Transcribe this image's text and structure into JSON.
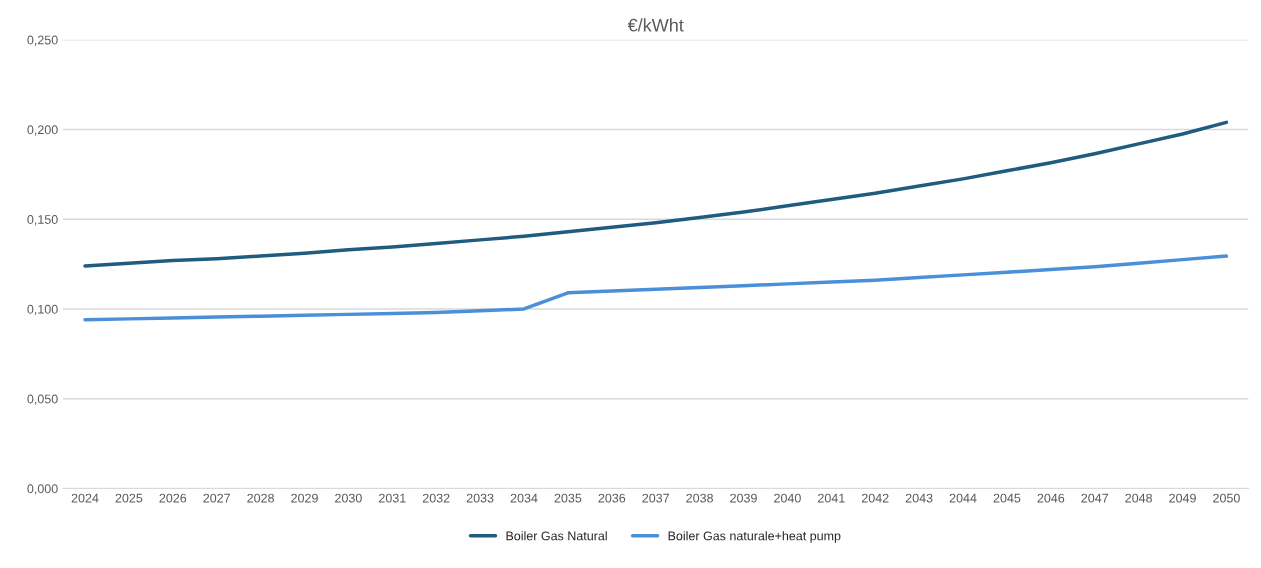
{
  "chart_data": {
    "type": "line",
    "title": "€/kWht",
    "categories": [
      "2024",
      "2025",
      "2026",
      "2027",
      "2028",
      "2029",
      "2030",
      "2031",
      "2032",
      "2033",
      "2034",
      "2035",
      "2036",
      "2037",
      "2038",
      "2039",
      "2040",
      "2041",
      "2042",
      "2043",
      "2044",
      "2045",
      "2046",
      "2047",
      "2048",
      "2049",
      "2050"
    ],
    "series": [
      {
        "name": "Boiler Gas Natural",
        "color": "#1f5c7e",
        "values": [
          0.124,
          0.1255,
          0.127,
          0.128,
          0.1295,
          0.131,
          0.133,
          0.1345,
          0.1365,
          0.1385,
          0.1405,
          0.143,
          0.1455,
          0.148,
          0.151,
          0.154,
          0.1575,
          0.161,
          0.1645,
          0.1685,
          0.1725,
          0.177,
          0.1815,
          0.1865,
          0.192,
          0.1975,
          0.204
        ]
      },
      {
        "name": "Boiler Gas naturale+heat pump",
        "color": "#4a90d9",
        "values": [
          0.094,
          0.0945,
          0.095,
          0.0955,
          0.096,
          0.0965,
          0.097,
          0.0975,
          0.098,
          0.099,
          0.1,
          0.109,
          0.11,
          0.111,
          0.112,
          0.113,
          0.114,
          0.115,
          0.116,
          0.1175,
          0.119,
          0.1205,
          0.122,
          0.1235,
          0.1255,
          0.1275,
          0.1295
        ]
      }
    ],
    "ylim": [
      0,
      0.25
    ],
    "yticks": [
      {
        "value": 0,
        "label": "0,000"
      },
      {
        "value": 0.05,
        "label": "0,050"
      },
      {
        "value": 0.1,
        "label": "0,100"
      },
      {
        "value": 0.15,
        "label": "0,150"
      },
      {
        "value": 0.2,
        "label": "0,200"
      },
      {
        "value": 0.25,
        "label": "0,250"
      }
    ],
    "grid": "y",
    "legend": "bottom",
    "marker": "none",
    "line_style": "solid"
  }
}
